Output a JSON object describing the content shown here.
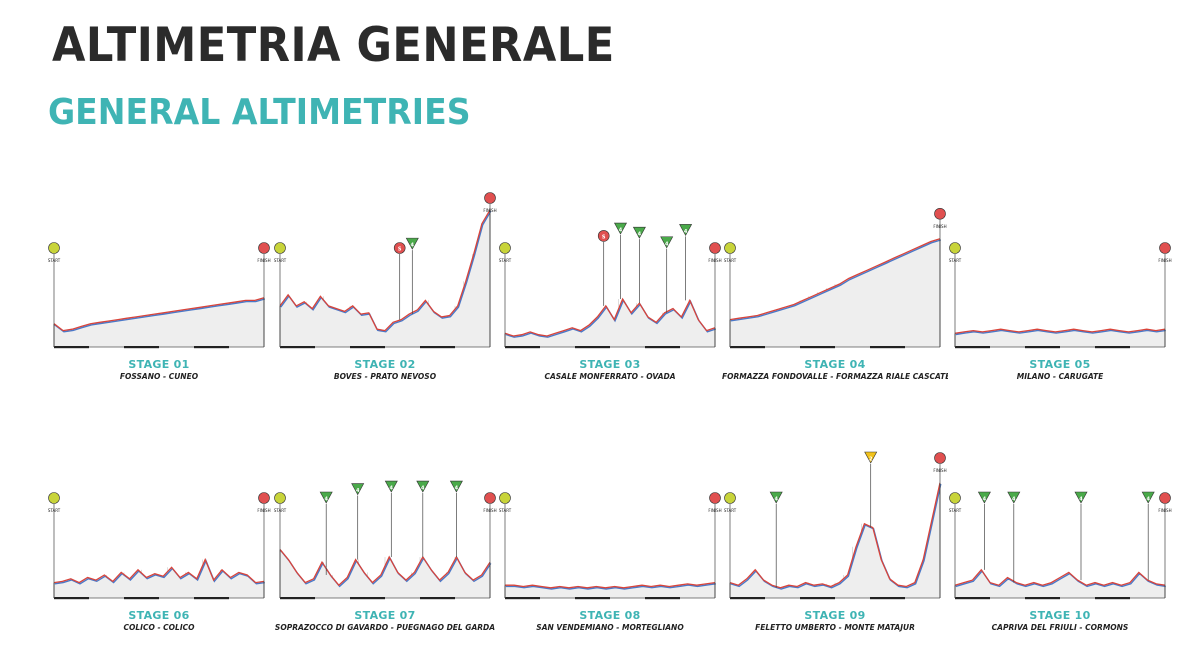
{
  "header": {
    "title": "ALTIMETRIA GENERALE",
    "subtitle": "GENERAL ALTIMETRIES"
  },
  "colors": {
    "title": "#2b2b2b",
    "subtitle": "#3fb4b4",
    "profile_line_top": "#d9443a",
    "profile_line_under": "#4a78c8",
    "profile_fill": "#eeeeee",
    "marker_start": "#c8d43a",
    "marker_finish": "#e05050",
    "marker_kom": "#4aaa4a",
    "marker_sprint": "#e05050",
    "marker_bonus": "#f2c21a"
  },
  "chart_data": [
    {
      "type": "area",
      "stage": "STAGE 01",
      "route": "FOSSANO - CUNEO",
      "profile": [
        0.17,
        0.12,
        0.13,
        0.15,
        0.17,
        0.18,
        0.19,
        0.2,
        0.21,
        0.22,
        0.23,
        0.24,
        0.25,
        0.26,
        0.27,
        0.28,
        0.29,
        0.3,
        0.31,
        0.32,
        0.33,
        0.34,
        0.34,
        0.36
      ],
      "markers": [
        {
          "at": 0,
          "kind": "start",
          "label": "START"
        },
        {
          "at": 1,
          "kind": "finish",
          "label": "FINISH"
        }
      ]
    },
    {
      "type": "area",
      "stage": "STAGE 02",
      "route": "BOVES - PRATO NEVOSO",
      "profile": [
        0.3,
        0.38,
        0.3,
        0.33,
        0.28,
        0.37,
        0.3,
        0.28,
        0.26,
        0.3,
        0.24,
        0.25,
        0.13,
        0.12,
        0.18,
        0.2,
        0.24,
        0.27,
        0.34,
        0.26,
        0.22,
        0.23,
        0.3,
        0.48,
        0.68,
        0.9,
        1.0
      ],
      "markers": [
        {
          "at": 0,
          "kind": "start",
          "label": "START"
        },
        {
          "at": 0.57,
          "kind": "sprint",
          "label": "S"
        },
        {
          "at": 0.63,
          "kind": "kom",
          "label": "4"
        },
        {
          "at": 1,
          "kind": "finish",
          "label": "FINISH"
        }
      ]
    },
    {
      "type": "area",
      "stage": "STAGE 03",
      "route": "CASALE MONFERRATO - OVADA",
      "profile": [
        0.1,
        0.08,
        0.09,
        0.11,
        0.09,
        0.08,
        0.1,
        0.12,
        0.14,
        0.12,
        0.16,
        0.22,
        0.3,
        0.2,
        0.35,
        0.25,
        0.32,
        0.22,
        0.18,
        0.25,
        0.28,
        0.22,
        0.34,
        0.2,
        0.12,
        0.14
      ],
      "markers": [
        {
          "at": 0,
          "kind": "start",
          "label": "START"
        },
        {
          "at": 0.47,
          "kind": "sprint",
          "label": "S"
        },
        {
          "at": 0.55,
          "kind": "kom",
          "label": "4"
        },
        {
          "at": 0.64,
          "kind": "kom",
          "label": "4"
        },
        {
          "at": 0.77,
          "kind": "kom",
          "label": "4"
        },
        {
          "at": 0.86,
          "kind": "kom",
          "label": "4"
        },
        {
          "at": 1,
          "kind": "finish",
          "label": "FINISH"
        }
      ]
    },
    {
      "type": "area",
      "stage": "STAGE 04",
      "route": "FORMAZZA FONDOVALLE - FORMAZZA RIALE CASCATE DEL TOCE",
      "profile": [
        0.2,
        0.21,
        0.22,
        0.23,
        0.25,
        0.27,
        0.29,
        0.31,
        0.34,
        0.37,
        0.4,
        0.43,
        0.46,
        0.5,
        0.53,
        0.56,
        0.59,
        0.62,
        0.65,
        0.68,
        0.71,
        0.74,
        0.77,
        0.79
      ],
      "markers": [
        {
          "at": 0,
          "kind": "start",
          "label": "START"
        },
        {
          "at": 1,
          "kind": "finish",
          "label": "FINISH"
        }
      ]
    },
    {
      "type": "area",
      "stage": "STAGE 05",
      "route": "MILANO - CARUGATE",
      "profile": [
        0.1,
        0.11,
        0.12,
        0.11,
        0.12,
        0.13,
        0.12,
        0.11,
        0.12,
        0.13,
        0.12,
        0.11,
        0.12,
        0.13,
        0.12,
        0.11,
        0.12,
        0.13,
        0.12,
        0.11,
        0.12,
        0.13,
        0.12,
        0.13
      ],
      "markers": [
        {
          "at": 0,
          "kind": "start",
          "label": "START"
        },
        {
          "at": 1,
          "kind": "finish",
          "label": "FINISH"
        }
      ]
    },
    {
      "type": "area",
      "stage": "STAGE 06",
      "route": "COLICO - COLICO",
      "profile": [
        0.12,
        0.13,
        0.15,
        0.12,
        0.16,
        0.14,
        0.18,
        0.13,
        0.2,
        0.15,
        0.22,
        0.16,
        0.19,
        0.17,
        0.24,
        0.16,
        0.2,
        0.15,
        0.3,
        0.14,
        0.22,
        0.16,
        0.2,
        0.18,
        0.12,
        0.13
      ],
      "markers": [
        {
          "at": 0,
          "kind": "start",
          "label": "START"
        },
        {
          "at": 1,
          "kind": "finish",
          "label": "FINISH"
        }
      ]
    },
    {
      "type": "area",
      "stage": "STAGE 07",
      "route": "SOPRAZOCCO DI GAVARDO - PUEGNAGO DEL GARDA",
      "profile": [
        0.38,
        0.3,
        0.2,
        0.12,
        0.15,
        0.28,
        0.18,
        0.1,
        0.16,
        0.3,
        0.2,
        0.12,
        0.18,
        0.32,
        0.2,
        0.14,
        0.2,
        0.32,
        0.22,
        0.14,
        0.2,
        0.32,
        0.2,
        0.14,
        0.18,
        0.28
      ],
      "markers": [
        {
          "at": 0,
          "kind": "start",
          "label": "START"
        },
        {
          "at": 0.22,
          "kind": "kom",
          "label": "4"
        },
        {
          "at": 0.37,
          "kind": "kom",
          "label": "4"
        },
        {
          "at": 0.53,
          "kind": "kom",
          "label": "4"
        },
        {
          "at": 0.68,
          "kind": "kom",
          "label": "4"
        },
        {
          "at": 0.84,
          "kind": "kom",
          "label": "4"
        },
        {
          "at": 1,
          "kind": "finish",
          "label": "FINISH"
        }
      ]
    },
    {
      "type": "area",
      "stage": "STAGE 08",
      "route": "SAN VENDEMIANO - MORTEGLIANO",
      "profile": [
        0.1,
        0.1,
        0.09,
        0.1,
        0.09,
        0.08,
        0.09,
        0.08,
        0.09,
        0.08,
        0.09,
        0.08,
        0.09,
        0.08,
        0.09,
        0.1,
        0.09,
        0.1,
        0.09,
        0.1,
        0.11,
        0.1,
        0.11,
        0.12
      ],
      "markers": [
        {
          "at": 0,
          "kind": "start",
          "label": "START"
        },
        {
          "at": 1,
          "kind": "finish",
          "label": "FINISH"
        }
      ]
    },
    {
      "type": "area",
      "stage": "STAGE 09",
      "route": "FELETTO UMBERTO - MONTE MATAJUR",
      "profile": [
        0.12,
        0.1,
        0.15,
        0.22,
        0.14,
        0.1,
        0.08,
        0.1,
        0.09,
        0.12,
        0.1,
        0.11,
        0.09,
        0.12,
        0.18,
        0.4,
        0.58,
        0.55,
        0.3,
        0.15,
        0.1,
        0.09,
        0.12,
        0.3,
        0.6,
        0.9
      ],
      "markers": [
        {
          "at": 0,
          "kind": "start",
          "label": "START"
        },
        {
          "at": 0.22,
          "kind": "kom",
          "label": "4"
        },
        {
          "at": 0.67,
          "kind": "bonus",
          "label": "2"
        },
        {
          "at": 1,
          "kind": "finish",
          "label": "FINISH"
        }
      ]
    },
    {
      "type": "area",
      "stage": "STAGE 10",
      "route": "CAPRIVA DEL FRIULI - CORMONS",
      "profile": [
        0.1,
        0.12,
        0.14,
        0.22,
        0.12,
        0.1,
        0.16,
        0.12,
        0.1,
        0.12,
        0.1,
        0.12,
        0.16,
        0.2,
        0.14,
        0.1,
        0.12,
        0.1,
        0.12,
        0.1,
        0.12,
        0.2,
        0.14,
        0.11,
        0.1
      ],
      "markers": [
        {
          "at": 0,
          "kind": "start",
          "label": "START"
        },
        {
          "at": 0.14,
          "kind": "kom",
          "label": "4"
        },
        {
          "at": 0.28,
          "kind": "kom",
          "label": "4"
        },
        {
          "at": 0.6,
          "kind": "kom",
          "label": "4"
        },
        {
          "at": 0.92,
          "kind": "kom",
          "label": "4"
        },
        {
          "at": 1,
          "kind": "finish",
          "label": "FINISH"
        }
      ]
    }
  ]
}
